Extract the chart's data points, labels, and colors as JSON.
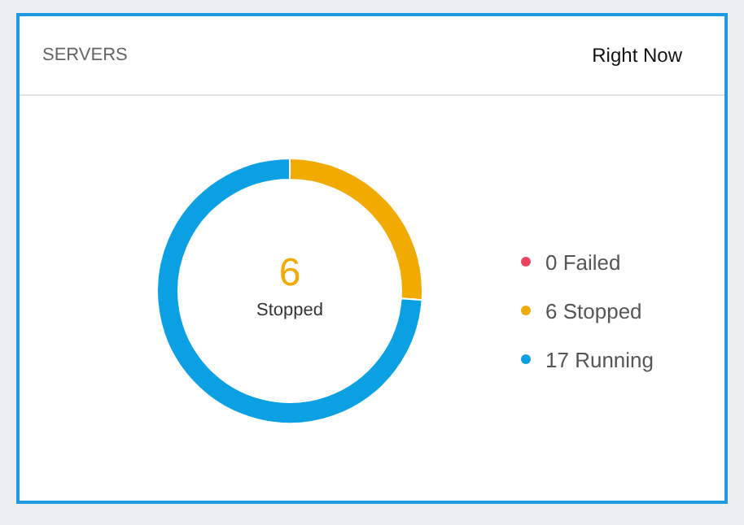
{
  "chart_data": {
    "type": "donut",
    "title": "SERVERS",
    "subtitle": "Right Now",
    "categories": [
      "0 Failed",
      "6 Stopped",
      "17 Running"
    ],
    "values": [
      0,
      6,
      17
    ],
    "colors": [
      "#e8465e",
      "#f0aa00",
      "#0ba0e2"
    ],
    "legend": "right",
    "annotations": [
      "6",
      "Stopped"
    ]
  }
}
